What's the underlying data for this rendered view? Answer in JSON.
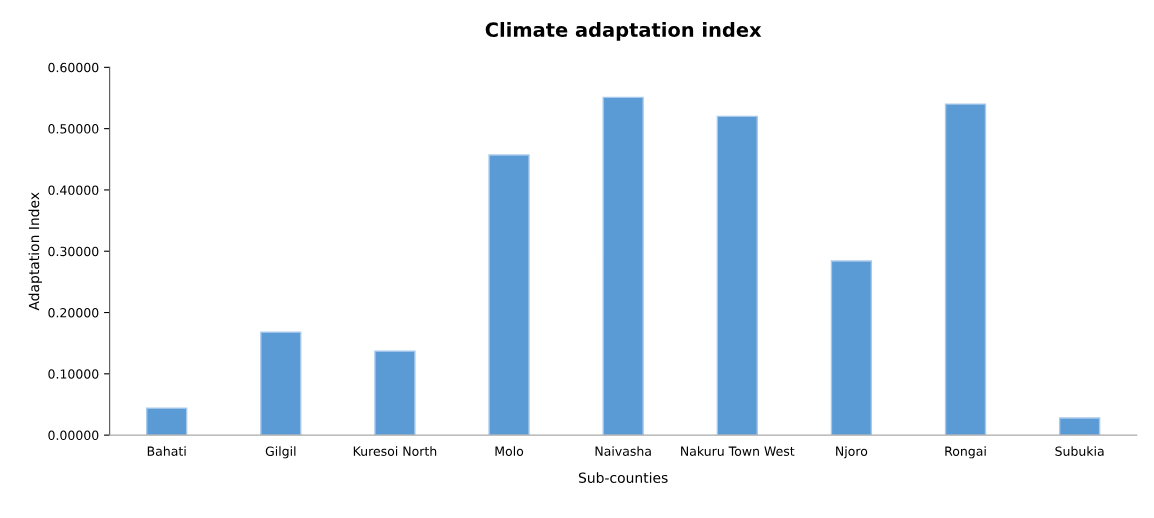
{
  "chart_data": {
    "type": "bar",
    "title": "Climate adaptation index",
    "xlabel": "Sub-counties",
    "ylabel": "Adaptation Index",
    "categories": [
      "Bahati",
      "Gilgil",
      "Kuresoi North",
      "Molo",
      "Naivasha",
      "Nakuru Town West",
      "Njoro",
      "Rongai",
      "Subukia"
    ],
    "values": [
      0.044,
      0.168,
      0.137,
      0.457,
      0.551,
      0.52,
      0.284,
      0.54,
      0.028
    ],
    "color": "#5b9bd5",
    "ylim": [
      0,
      0.6
    ],
    "yticks": [
      {
        "value": 0,
        "label": "0.00000"
      },
      {
        "value": 0.1,
        "label": "0.10000"
      },
      {
        "value": 0.2,
        "label": "0.20000"
      },
      {
        "value": 0.3,
        "label": "0.30000"
      },
      {
        "value": 0.4,
        "label": "0.40000"
      },
      {
        "value": 0.5,
        "label": "0.50000"
      },
      {
        "value": 0.6,
        "label": "0.60000"
      }
    ],
    "grid": false,
    "legend": false
  }
}
